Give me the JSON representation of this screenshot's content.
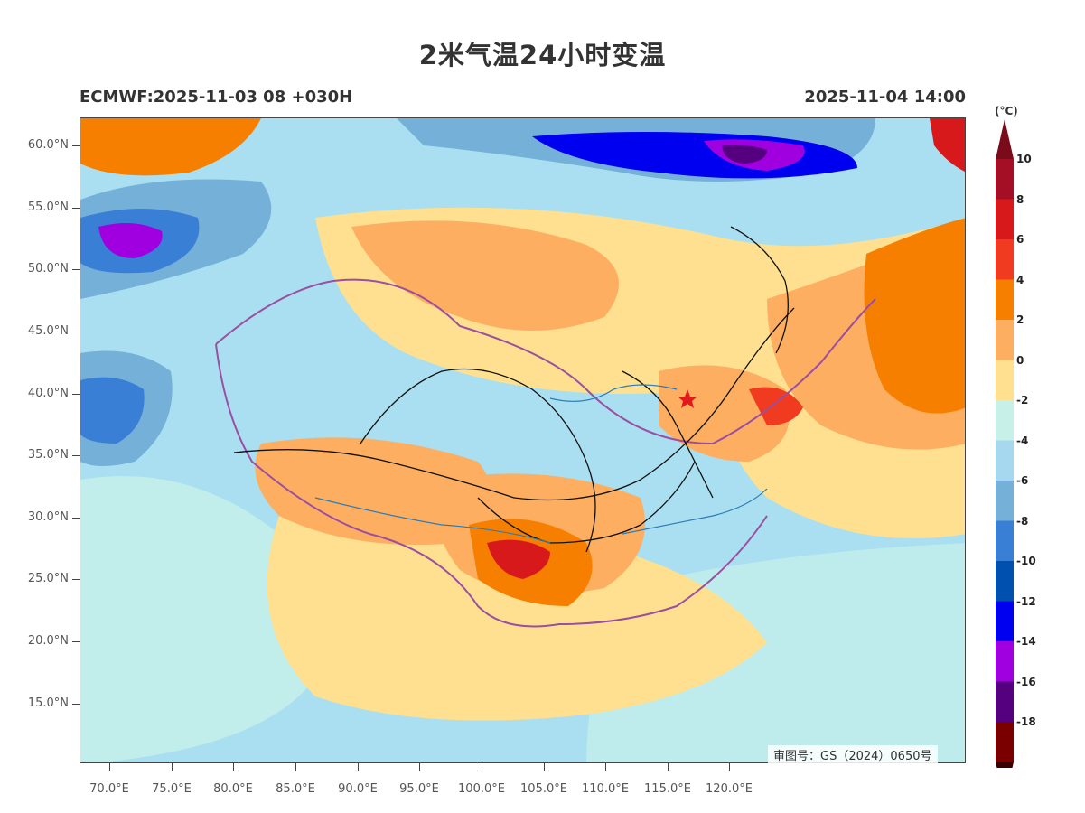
{
  "title": "2米气温24小时变温",
  "model_run": "ECMWF:2025-11-03 08 +030H",
  "valid_time": "2025-11-04 14:00",
  "review_number": "审图号：GS（2024）0650号",
  "latitude_labels": [
    "60.0°N",
    "55.0°N",
    "50.0°N",
    "45.0°N",
    "40.0°N",
    "35.0°N",
    "30.0°N",
    "25.0°N",
    "20.0°N",
    "15.0°N"
  ],
  "longitude_labels": [
    "70.0°E",
    "75.0°E",
    "80.0°E",
    "85.0°E",
    "90.0°E",
    "95.0°E",
    "100.0°E",
    "105.0°E",
    "110.0°E",
    "115.0°E",
    "120.0°E"
  ],
  "colorbar": {
    "unit": "(°C)",
    "labels": [
      "10",
      "8",
      "6",
      "4",
      "2",
      "0",
      "-2",
      "-4",
      "-6",
      "-8",
      "-10",
      "-12",
      "-14",
      "-16",
      "-18"
    ],
    "colors": [
      "#a50f26",
      "#d7191c",
      "#f03b20",
      "#f77f00",
      "#fdae61",
      "#fee090",
      "#c7f0e8",
      "#a6d8f0",
      "#74b0d8",
      "#3a7fd6",
      "#0050b0",
      "#0000f0",
      "#a000e0",
      "#55007f",
      "#7a0000"
    ]
  }
}
